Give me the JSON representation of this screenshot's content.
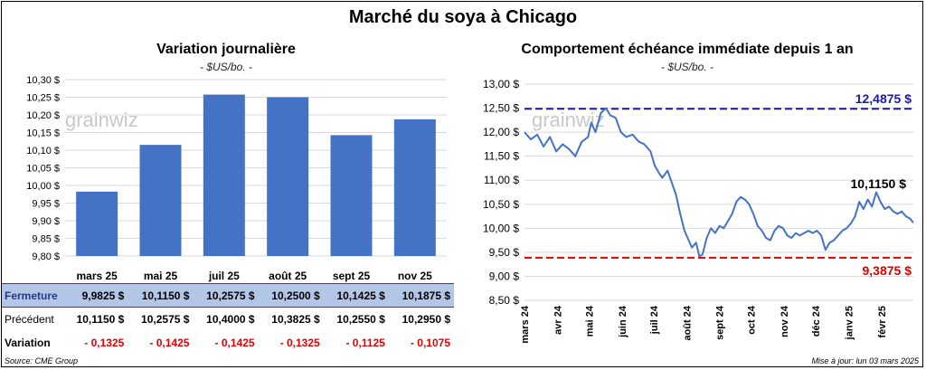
{
  "title": "Marché du soya à Chicago",
  "left_chart": {
    "subtitle": "Variation journalière",
    "unit": "- $US/bo. -",
    "watermark": "grainwiz"
  },
  "right_chart": {
    "subtitle": "Comportement échéance immédiate depuis 1 an",
    "unit": "- $US/bo. -",
    "watermark": "grainwiz"
  },
  "table": {
    "rows": [
      {
        "label": "Fermeture",
        "values": [
          "9,9825  $",
          "10,1150  $",
          "10,2575  $",
          "10,2500  $",
          "10,1425  $",
          "10,1875  $"
        ]
      },
      {
        "label": "Précédent",
        "values": [
          "10,1150  $",
          "10,2575  $",
          "10,4000  $",
          "10,3825  $",
          "10,2550  $",
          "10,2950  $"
        ]
      },
      {
        "label": "Variation",
        "values": [
          "- 0,1325",
          "- 0,1425",
          "- 0,1425",
          "- 0,1325",
          "- 0,1125",
          "- 0,1075"
        ]
      }
    ]
  },
  "footer": {
    "source": "Source: CME Group",
    "updated": "Mise à jour: lun 03 mars 2025"
  },
  "colors": {
    "bar": "#4472c4",
    "line": "#4472c4",
    "high_line": "#1a1aa6",
    "low_line": "#e00000"
  },
  "chart_data": [
    {
      "type": "bar",
      "categories": [
        "mars 25",
        "mai 25",
        "juil 25",
        "août 25",
        "sept 25",
        "nov 25"
      ],
      "values": [
        9.9825,
        10.115,
        10.2575,
        10.25,
        10.1425,
        10.1875
      ],
      "title": "Variation journalière",
      "ylabel": "$US/bo.",
      "ylim": [
        9.8,
        10.3
      ],
      "yticks": [
        9.8,
        9.85,
        9.9,
        9.95,
        10.0,
        10.05,
        10.1,
        10.15,
        10.2,
        10.25,
        10.3
      ],
      "ytick_labels": [
        "9,80 $",
        "9,85 $",
        "9,90 $",
        "9,95 $",
        "10,00 $",
        "10,05 $",
        "10,10 $",
        "10,15 $",
        "10,20 $",
        "10,25 $",
        "10,30 $"
      ],
      "grid": true
    },
    {
      "type": "line",
      "title": "Comportement échéance immédiate depuis 1 an",
      "ylabel": "$US/bo.",
      "ylim": [
        8.5,
        13.0
      ],
      "yticks": [
        8.5,
        9.0,
        9.5,
        10.0,
        10.5,
        11.0,
        11.5,
        12.0,
        12.5,
        13.0
      ],
      "ytick_labels": [
        "8,50 $",
        "9,00 $",
        "9,50 $",
        "10,00 $",
        "10,50 $",
        "11,00 $",
        "11,50 $",
        "12,00 $",
        "12,50 $",
        "13,00 $"
      ],
      "x_start": "2024-03-01",
      "x_end": "2025-03-03",
      "xtick_dates": [
        "2024-03-01",
        "2024-04-01",
        "2024-05-01",
        "2024-06-01",
        "2024-07-01",
        "2024-08-01",
        "2024-09-01",
        "2024-10-01",
        "2024-11-01",
        "2024-12-01",
        "2025-01-01",
        "2025-02-01"
      ],
      "xtick_labels": [
        "mars 24",
        "avr 24",
        "mai 24",
        "juin 24",
        "juil 24",
        "août 24",
        "sept 24",
        "oct 24",
        "nov 24",
        "déc 24",
        "janv 25",
        "févr 25"
      ],
      "series": [
        {
          "points": [
            [
              "2024-03-01",
              12.0
            ],
            [
              "2024-03-07",
              11.85
            ],
            [
              "2024-03-13",
              11.95
            ],
            [
              "2024-03-19",
              11.7
            ],
            [
              "2024-03-25",
              11.9
            ],
            [
              "2024-03-31",
              11.6
            ],
            [
              "2024-04-06",
              11.75
            ],
            [
              "2024-04-12",
              11.65
            ],
            [
              "2024-04-18",
              11.5
            ],
            [
              "2024-04-24",
              11.8
            ],
            [
              "2024-04-30",
              11.9
            ],
            [
              "2024-05-03",
              12.2
            ],
            [
              "2024-05-07",
              12.0
            ],
            [
              "2024-05-12",
              12.4
            ],
            [
              "2024-05-17",
              12.5
            ],
            [
              "2024-05-21",
              12.35
            ],
            [
              "2024-05-26",
              12.3
            ],
            [
              "2024-05-31",
              12.0
            ],
            [
              "2024-06-05",
              11.9
            ],
            [
              "2024-06-11",
              11.95
            ],
            [
              "2024-06-17",
              11.8
            ],
            [
              "2024-06-22",
              11.75
            ],
            [
              "2024-06-28",
              11.6
            ],
            [
              "2024-07-02",
              11.3
            ],
            [
              "2024-07-06",
              11.15
            ],
            [
              "2024-07-09",
              11.05
            ],
            [
              "2024-07-14",
              11.2
            ],
            [
              "2024-07-18",
              10.95
            ],
            [
              "2024-07-22",
              10.7
            ],
            [
              "2024-07-26",
              10.3
            ],
            [
              "2024-07-30",
              9.95
            ],
            [
              "2024-08-03",
              9.75
            ],
            [
              "2024-08-06",
              9.6
            ],
            [
              "2024-08-10",
              9.7
            ],
            [
              "2024-08-13",
              9.42
            ],
            [
              "2024-08-16",
              9.45
            ],
            [
              "2024-08-20",
              9.8
            ],
            [
              "2024-08-24",
              10.0
            ],
            [
              "2024-08-28",
              9.9
            ],
            [
              "2024-09-01",
              10.05
            ],
            [
              "2024-09-05",
              10.0
            ],
            [
              "2024-09-09",
              10.15
            ],
            [
              "2024-09-13",
              10.3
            ],
            [
              "2024-09-17",
              10.55
            ],
            [
              "2024-09-21",
              10.65
            ],
            [
              "2024-09-25",
              10.6
            ],
            [
              "2024-09-29",
              10.5
            ],
            [
              "2024-10-03",
              10.3
            ],
            [
              "2024-10-07",
              10.05
            ],
            [
              "2024-10-11",
              9.95
            ],
            [
              "2024-10-15",
              9.8
            ],
            [
              "2024-10-19",
              9.75
            ],
            [
              "2024-10-23",
              9.95
            ],
            [
              "2024-10-27",
              10.05
            ],
            [
              "2024-10-31",
              10.0
            ],
            [
              "2024-11-04",
              9.85
            ],
            [
              "2024-11-08",
              9.8
            ],
            [
              "2024-11-12",
              9.9
            ],
            [
              "2024-11-16",
              9.85
            ],
            [
              "2024-11-20",
              9.9
            ],
            [
              "2024-11-24",
              9.95
            ],
            [
              "2024-11-28",
              9.9
            ],
            [
              "2024-12-02",
              9.95
            ],
            [
              "2024-12-06",
              9.85
            ],
            [
              "2024-12-10",
              9.55
            ],
            [
              "2024-12-14",
              9.7
            ],
            [
              "2024-12-18",
              9.75
            ],
            [
              "2024-12-22",
              9.85
            ],
            [
              "2024-12-26",
              9.95
            ],
            [
              "2024-12-30",
              10.0
            ],
            [
              "2025-01-03",
              10.1
            ],
            [
              "2025-01-07",
              10.25
            ],
            [
              "2025-01-11",
              10.55
            ],
            [
              "2025-01-15",
              10.4
            ],
            [
              "2025-01-19",
              10.6
            ],
            [
              "2025-01-23",
              10.45
            ],
            [
              "2025-01-27",
              10.75
            ],
            [
              "2025-01-31",
              10.55
            ],
            [
              "2025-02-04",
              10.4
            ],
            [
              "2025-02-08",
              10.45
            ],
            [
              "2025-02-12",
              10.35
            ],
            [
              "2025-02-16",
              10.3
            ],
            [
              "2025-02-20",
              10.35
            ],
            [
              "2025-02-24",
              10.25
            ],
            [
              "2025-02-28",
              10.2
            ],
            [
              "2025-03-03",
              10.115
            ]
          ]
        }
      ],
      "reference_lines": [
        {
          "value": 12.4875,
          "label": "12,4875 $",
          "color": "#1a1aa6",
          "style": "dashed"
        },
        {
          "value": 9.3875,
          "label": "9,3875 $",
          "color": "#e00000",
          "style": "dashed"
        }
      ],
      "last_value_label": "10,1150 $",
      "grid": true
    }
  ]
}
